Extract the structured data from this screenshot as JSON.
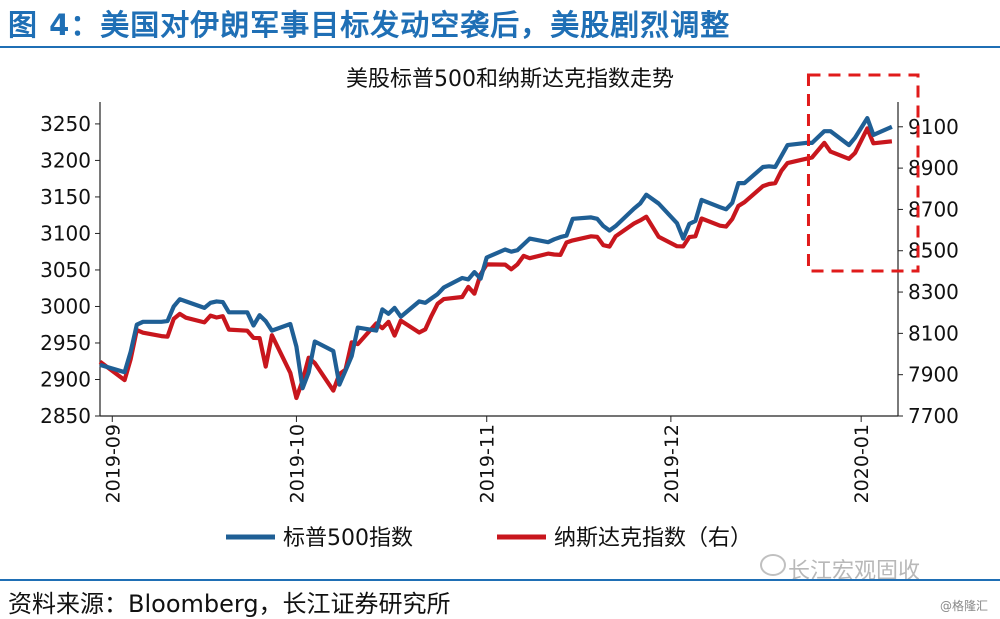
{
  "figure_title": "图 4：美国对伊朗军事目标发动空袭后，美股剧烈调整",
  "source": "资料来源：Bloomberg，长江证券研究所",
  "watermark": "长江宏观固收",
  "credit": "@格隆汇",
  "colors": {
    "title": "#1f6fb5",
    "sp500": "#1f5f95",
    "nasdaq": "#c8161d",
    "highlight": "#e01b1b"
  },
  "chart_data": {
    "type": "line",
    "title": "美股标普500和纳斯达克指数走势",
    "x_ticks": [
      "2019-09",
      "2019-10",
      "2019-11",
      "2019-12",
      "2020-01"
    ],
    "xlim": [
      "2019-08-30",
      "2020-01-07"
    ],
    "y_left": {
      "ylim": [
        2850,
        3280
      ],
      "ticks": [
        2850,
        2900,
        2950,
        3000,
        3050,
        3100,
        3150,
        3200,
        3250
      ]
    },
    "y_right": {
      "ylim": [
        7700,
        9220
      ],
      "ticks": [
        7700,
        7900,
        8100,
        8300,
        8500,
        8700,
        8900,
        9100
      ]
    },
    "legend": [
      "标普500指数",
      "纳斯达克指数（右）"
    ],
    "legend_position": "bottom",
    "highlight_box": {
      "x_range": [
        "2019-12-27",
        "2020-01-07"
      ]
    },
    "series": [
      {
        "name": "标普500指数",
        "axis": "left",
        "x": [
          "2019-08-30",
          "2019-09-03",
          "2019-09-04",
          "2019-09-05",
          "2019-09-06",
          "2019-09-09",
          "2019-09-10",
          "2019-09-11",
          "2019-09-12",
          "2019-09-13",
          "2019-09-16",
          "2019-09-17",
          "2019-09-18",
          "2019-09-19",
          "2019-09-20",
          "2019-09-23",
          "2019-09-24",
          "2019-09-25",
          "2019-09-26",
          "2019-09-27",
          "2019-09-30",
          "2019-10-01",
          "2019-10-02",
          "2019-10-03",
          "2019-10-04",
          "2019-10-07",
          "2019-10-08",
          "2019-10-09",
          "2019-10-10",
          "2019-10-11",
          "2019-10-14",
          "2019-10-15",
          "2019-10-16",
          "2019-10-17",
          "2019-10-18",
          "2019-10-21",
          "2019-10-22",
          "2019-10-23",
          "2019-10-24",
          "2019-10-25",
          "2019-10-28",
          "2019-10-29",
          "2019-10-30",
          "2019-10-31",
          "2019-11-01",
          "2019-11-04",
          "2019-11-05",
          "2019-11-06",
          "2019-11-07",
          "2019-11-08",
          "2019-11-11",
          "2019-11-12",
          "2019-11-13",
          "2019-11-14",
          "2019-11-15",
          "2019-11-18",
          "2019-11-19",
          "2019-11-20",
          "2019-11-21",
          "2019-11-22",
          "2019-11-25",
          "2019-11-26",
          "2019-11-27",
          "2019-11-29",
          "2019-12-02",
          "2019-12-03",
          "2019-12-04",
          "2019-12-05",
          "2019-12-06",
          "2019-12-09",
          "2019-12-10",
          "2019-12-11",
          "2019-12-12",
          "2019-12-13",
          "2019-12-16",
          "2019-12-17",
          "2019-12-18",
          "2019-12-19",
          "2019-12-20",
          "2019-12-23",
          "2019-12-24",
          "2019-12-26",
          "2019-12-27",
          "2019-12-30",
          "2019-12-31",
          "2020-01-02",
          "2020-01-03",
          "2020-01-06"
        ],
        "values": [
          2920,
          2910,
          2938,
          2975,
          2979,
          2979,
          2980,
          3000,
          3010,
          3007,
          2998,
          3005,
          3007,
          3006,
          2992,
          2992,
          2974,
          2988,
          2980,
          2967,
          2976,
          2945,
          2888,
          2910,
          2952,
          2939,
          2893,
          2912,
          2932,
          2971,
          2967,
          2996,
          2990,
          2998,
          2986,
          3007,
          3005,
          3011,
          3017,
          3026,
          3039,
          3037,
          3047,
          3038,
          3067,
          3078,
          3075,
          3077,
          3085,
          3093,
          3088,
          3092,
          3095,
          3097,
          3120,
          3122,
          3120,
          3110,
          3104,
          3110,
          3134,
          3141,
          3153,
          3141,
          3114,
          3093,
          3113,
          3117,
          3146,
          3136,
          3133,
          3142,
          3169,
          3169,
          3191,
          3192,
          3191,
          3206,
          3221,
          3224,
          3224,
          3240,
          3240,
          3221,
          3231,
          3258,
          3235,
          3246
        ]
      },
      {
        "name": "纳斯达克指数（右）",
        "axis": "right",
        "x": [
          "2019-08-30",
          "2019-09-03",
          "2019-09-04",
          "2019-09-05",
          "2019-09-06",
          "2019-09-09",
          "2019-09-10",
          "2019-09-11",
          "2019-09-12",
          "2019-09-13",
          "2019-09-16",
          "2019-09-17",
          "2019-09-18",
          "2019-09-19",
          "2019-09-20",
          "2019-09-23",
          "2019-09-24",
          "2019-09-25",
          "2019-09-26",
          "2019-09-27",
          "2019-09-30",
          "2019-10-01",
          "2019-10-02",
          "2019-10-03",
          "2019-10-04",
          "2019-10-07",
          "2019-10-08",
          "2019-10-09",
          "2019-10-10",
          "2019-10-11",
          "2019-10-14",
          "2019-10-15",
          "2019-10-16",
          "2019-10-17",
          "2019-10-18",
          "2019-10-21",
          "2019-10-22",
          "2019-10-23",
          "2019-10-24",
          "2019-10-25",
          "2019-10-28",
          "2019-10-29",
          "2019-10-30",
          "2019-10-31",
          "2019-11-01",
          "2019-11-04",
          "2019-11-05",
          "2019-11-06",
          "2019-11-07",
          "2019-11-08",
          "2019-11-11",
          "2019-11-12",
          "2019-11-13",
          "2019-11-14",
          "2019-11-15",
          "2019-11-18",
          "2019-11-19",
          "2019-11-20",
          "2019-11-21",
          "2019-11-22",
          "2019-11-25",
          "2019-11-26",
          "2019-11-27",
          "2019-11-29",
          "2019-12-02",
          "2019-12-03",
          "2019-12-04",
          "2019-12-05",
          "2019-12-06",
          "2019-12-09",
          "2019-12-10",
          "2019-12-11",
          "2019-12-12",
          "2019-12-13",
          "2019-12-16",
          "2019-12-17",
          "2019-12-18",
          "2019-12-19",
          "2019-12-20",
          "2019-12-23",
          "2019-12-24",
          "2019-12-26",
          "2019-12-27",
          "2019-12-30",
          "2019-12-31",
          "2020-01-02",
          "2020-01-03",
          "2020-01-06"
        ],
        "values": [
          7963,
          7874,
          7976,
          8116,
          8103,
          8087,
          8084,
          8170,
          8194,
          8176,
          8153,
          8186,
          8177,
          8183,
          8118,
          8113,
          8078,
          8077,
          7939,
          8091,
          7909,
          7787,
          7872,
          7982,
          7956,
          7823,
          7903,
          7924,
          8057,
          8048,
          8148,
          8125,
          8156,
          8089,
          8162,
          8104,
          8119,
          8185,
          8243,
          8266,
          8276,
          8325,
          8292,
          8386,
          8434,
          8433,
          8410,
          8434,
          8475,
          8464,
          8486,
          8482,
          8480,
          8540,
          8550,
          8570,
          8567,
          8527,
          8520,
          8570,
          8632,
          8647,
          8665,
          8568,
          8522,
          8521,
          8566,
          8570,
          8656,
          8621,
          8617,
          8654,
          8717,
          8735,
          8813,
          8823,
          8827,
          8887,
          8924,
          8945,
          8952,
          9022,
          8980,
          8945,
          8973,
          9092,
          9020,
          9030
        ]
      }
    ]
  }
}
